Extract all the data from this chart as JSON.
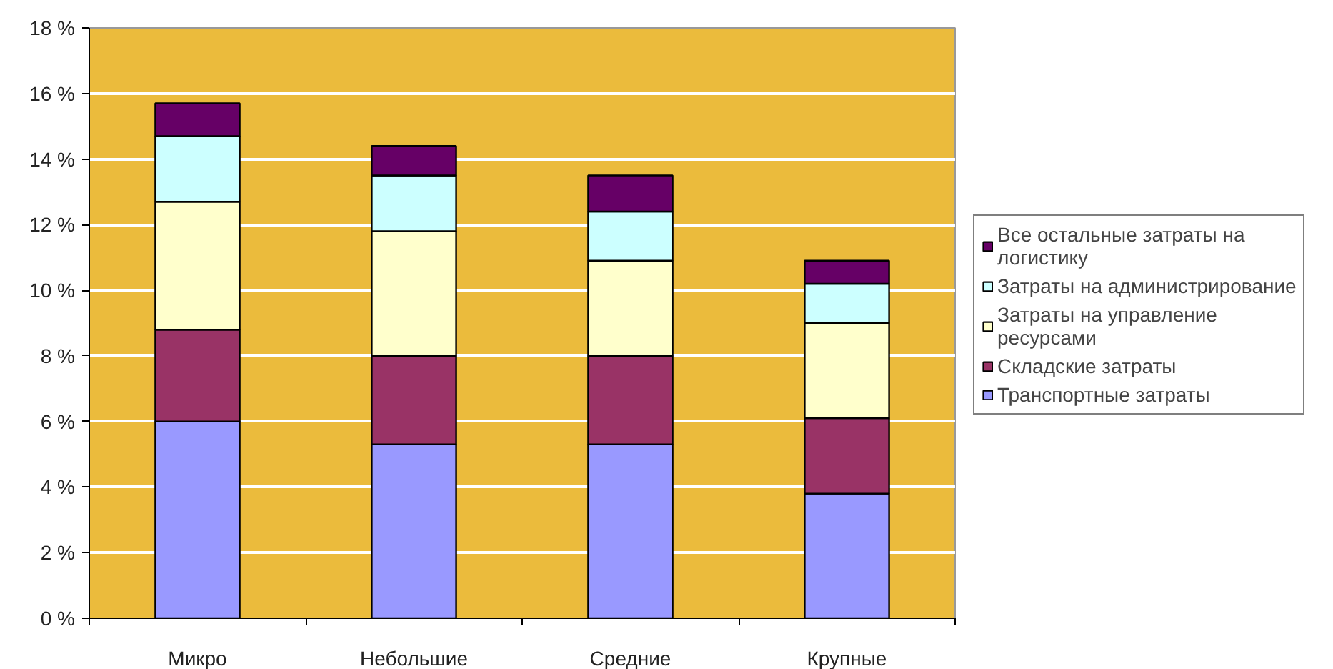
{
  "chart_data": {
    "type": "bar",
    "stacked": true,
    "categories": [
      "Микро",
      "Небольшие",
      "Средние",
      "Крупные"
    ],
    "series": [
      {
        "name": "Транспортные затраты",
        "color": "#9999ff",
        "values": [
          6.0,
          5.3,
          5.3,
          3.8
        ]
      },
      {
        "name": "Складские затраты",
        "color": "#993366",
        "values": [
          2.8,
          2.7,
          2.7,
          2.3
        ]
      },
      {
        "name": "Затраты на управление ресурсами",
        "color": "#ffffcc",
        "values": [
          3.9,
          3.8,
          2.9,
          2.9
        ]
      },
      {
        "name": "Затраты на администрирование",
        "color": "#ccffff",
        "values": [
          2.0,
          1.7,
          1.5,
          1.2
        ]
      },
      {
        "name": "Все остальные затраты на логистику",
        "color": "#660066",
        "values": [
          1.0,
          0.9,
          1.1,
          0.7
        ]
      }
    ],
    "ylim": [
      0,
      18
    ],
    "yticks": [
      {
        "value": 0,
        "label": "0 %"
      },
      {
        "value": 2,
        "label": "2 %"
      },
      {
        "value": 4,
        "label": "4 %"
      },
      {
        "value": 6,
        "label": "6 %"
      },
      {
        "value": 8,
        "label": "8 %"
      },
      {
        "value": 10,
        "label": "10 %"
      },
      {
        "value": 12,
        "label": "12 %"
      },
      {
        "value": 14,
        "label": "14 %"
      },
      {
        "value": 16,
        "label": "16 %"
      },
      {
        "value": 18,
        "label": "18 %"
      }
    ],
    "grid": "y",
    "legend": "right"
  }
}
